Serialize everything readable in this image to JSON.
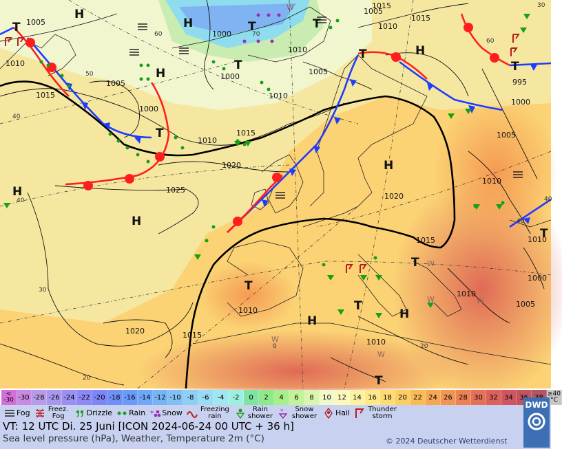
{
  "map": {
    "highs": [
      "H",
      "H",
      "H",
      "H",
      "H",
      "H",
      "H",
      "H",
      "H"
    ],
    "lows": [
      "T",
      "T",
      "T",
      "T",
      "T",
      "T",
      "T",
      "T",
      "T",
      "T",
      "T",
      "T"
    ],
    "isobar_labels": [
      "1005",
      "1010",
      "1015",
      "1000",
      "1005",
      "1000",
      "1000",
      "1010",
      "1005",
      "1010",
      "1015",
      "1010",
      "1015",
      "1020",
      "1025",
      "1020",
      "1010",
      "1015",
      "1010",
      "1020",
      "1015",
      "1010",
      "1010",
      "1000",
      "1005",
      "1010",
      "1005",
      "995",
      "1000",
      "1005",
      "1015",
      "1010"
    ],
    "temp_labels": [
      "40",
      "30",
      "40",
      "60",
      "50",
      "60",
      "70",
      "40",
      "40",
      "30",
      "20",
      "20",
      "0"
    ],
    "weather_letters": [
      "W",
      "W",
      "W",
      "W",
      "W",
      "W"
    ],
    "colors": {
      "cold_front": "#1e3cff",
      "warm_front": "#ff1e1e",
      "isobar": "#000000",
      "rain": "#16a016",
      "thunder": "#b41e1e"
    }
  },
  "scale": [
    {
      "v": "<",
      "v2": "-30",
      "c": "#d36fd8"
    },
    {
      "v": "-30",
      "c": "#c98ae3"
    },
    {
      "v": "-28",
      "c": "#b79ae8"
    },
    {
      "v": "-26",
      "c": "#a997ef"
    },
    {
      "v": "-24",
      "c": "#9b8ff2"
    },
    {
      "v": "-22",
      "c": "#8c88f5"
    },
    {
      "v": "-20",
      "c": "#7d86f7"
    },
    {
      "v": "-18",
      "c": "#7090f7"
    },
    {
      "v": "-16",
      "c": "#6a9bf8"
    },
    {
      "v": "-14",
      "c": "#6fa8f8"
    },
    {
      "v": "-12",
      "c": "#76b4f6"
    },
    {
      "v": "-10",
      "c": "#82c0f4"
    },
    {
      "v": "-8",
      "c": "#8ecff3"
    },
    {
      "v": "-6",
      "c": "#98dbf2"
    },
    {
      "v": "-4",
      "c": "#9fe7f0"
    },
    {
      "v": "-2",
      "c": "#9df0e0"
    },
    {
      "v": "0",
      "c": "#7fe3a3"
    },
    {
      "v": "2",
      "c": "#8fe98b"
    },
    {
      "v": "4",
      "c": "#a7ef8b"
    },
    {
      "v": "6",
      "c": "#c2f29a"
    },
    {
      "v": "8",
      "c": "#d9f5ae"
    },
    {
      "v": "10",
      "c": "#f2f8c9"
    },
    {
      "v": "12",
      "c": "#fbf7bd"
    },
    {
      "v": "14",
      "c": "#fcf2a3"
    },
    {
      "v": "16",
      "c": "#fce989"
    },
    {
      "v": "18",
      "c": "#fcdc73"
    },
    {
      "v": "20",
      "c": "#fbcd63"
    },
    {
      "v": "22",
      "c": "#f8bb58"
    },
    {
      "v": "24",
      "c": "#f5a853"
    },
    {
      "v": "26",
      "c": "#f19552"
    },
    {
      "v": "28",
      "c": "#ec8254"
    },
    {
      "v": "30",
      "c": "#e57058"
    },
    {
      "v": "32",
      "c": "#dc615c"
    },
    {
      "v": "34",
      "c": "#cf5660"
    },
    {
      "v": "36",
      "c": "#c25462"
    },
    {
      "v": "38",
      "c": "#b25565"
    },
    {
      "v": "≥40",
      "v2": "°C",
      "c": "#c6c6c6"
    }
  ],
  "legend": {
    "fog": "Fog",
    "freezing_fog": "Freez. Fog",
    "drizzle": "Drizzle",
    "rain": "Rain",
    "snow": "Snow",
    "freezing_rain": "Freezing rain",
    "rain_shower": "Rain shower",
    "snow_shower": "Snow shower",
    "hail": "Hail",
    "thunderstorm": "Thunder storm"
  },
  "info": {
    "vt": "VT: 12 UTC Di.  25 Juni [ICON 2024-06-24  00 UTC + 36 h]",
    "description": "Sea level pressure (hPa), Weather, Temperature 2m (°C)",
    "copyright": "© 2024 Deutscher Wetterdienst",
    "logo": "DWD"
  }
}
